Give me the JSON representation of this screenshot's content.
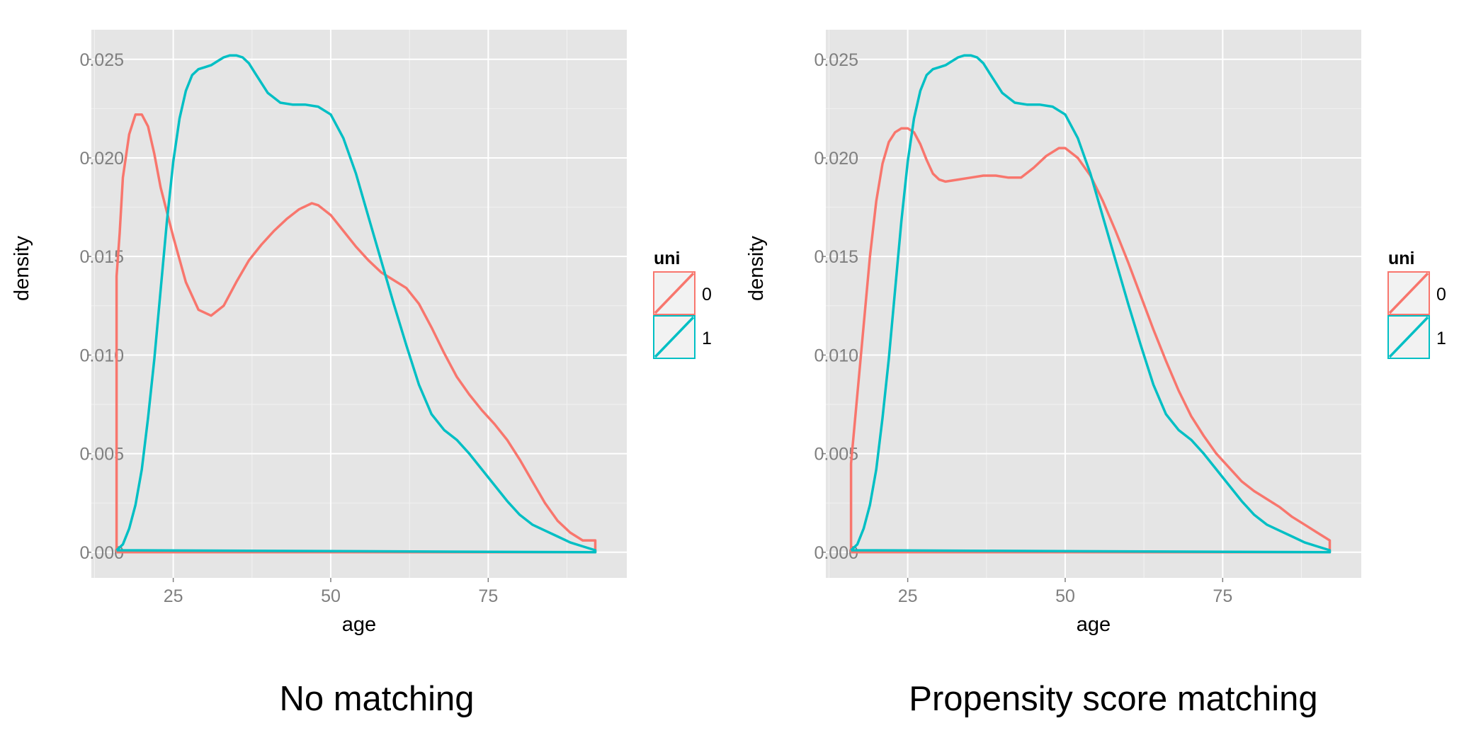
{
  "chart_data": [
    {
      "type": "line",
      "caption": "No matching",
      "xlabel": "age",
      "ylabel": "density",
      "xlim": [
        12,
        97
      ],
      "ylim": [
        -0.0013,
        0.0265
      ],
      "x_ticks": [
        25,
        50,
        75
      ],
      "x_tick_labels": [
        "25",
        "50",
        "75"
      ],
      "y_ticks": [
        0,
        0.005,
        0.01,
        0.015,
        0.02,
        0.025
      ],
      "y_tick_labels": [
        "0.000",
        "0.005",
        "0.010",
        "0.015",
        "0.020",
        "0.025"
      ],
      "grid": true,
      "legend": {
        "title": "uni",
        "position": "right"
      },
      "series": [
        {
          "name": "0",
          "color": "#F8766D",
          "x": [
            16,
            16,
            16.5,
            17,
            18,
            19,
            20,
            21,
            22,
            23,
            25,
            27,
            29,
            31,
            33,
            35,
            37,
            39,
            41,
            43,
            45,
            47,
            48,
            50,
            52,
            54,
            56,
            58,
            60,
            62,
            64,
            66,
            68,
            70,
            72,
            74,
            76,
            78,
            80,
            82,
            84,
            86,
            88,
            90,
            92,
            92
          ],
          "y": [
            0,
            0.014,
            0.0162,
            0.019,
            0.0212,
            0.0222,
            0.0222,
            0.0216,
            0.0202,
            0.0185,
            0.016,
            0.0137,
            0.0123,
            0.012,
            0.0125,
            0.0137,
            0.0148,
            0.0156,
            0.0163,
            0.0169,
            0.0174,
            0.0177,
            0.0176,
            0.0171,
            0.0163,
            0.0155,
            0.0148,
            0.0142,
            0.0138,
            0.0134,
            0.0126,
            0.0114,
            0.0101,
            0.0089,
            0.008,
            0.0072,
            0.0065,
            0.0057,
            0.0047,
            0.0036,
            0.0025,
            0.0016,
            0.001,
            0.0006,
            0.0006,
            0
          ]
        },
        {
          "name": "1",
          "color": "#00BFC4",
          "x": [
            16,
            17,
            18,
            19,
            20,
            21,
            22,
            23,
            24,
            25,
            26,
            27,
            28,
            29,
            30,
            31,
            32,
            33,
            34,
            35,
            36,
            37,
            38,
            40,
            42,
            44,
            46,
            48,
            50,
            52,
            54,
            56,
            58,
            60,
            62,
            64,
            66,
            68,
            70,
            72,
            74,
            76,
            78,
            80,
            82,
            84,
            86,
            88,
            90,
            92,
            92
          ],
          "y": [
            0.0001,
            0.0004,
            0.0012,
            0.0024,
            0.0042,
            0.0068,
            0.0098,
            0.0133,
            0.0168,
            0.0198,
            0.022,
            0.0234,
            0.0242,
            0.0245,
            0.0246,
            0.0247,
            0.0249,
            0.0251,
            0.0252,
            0.0252,
            0.0251,
            0.0248,
            0.0243,
            0.0233,
            0.0228,
            0.0227,
            0.0227,
            0.0226,
            0.0222,
            0.021,
            0.0192,
            0.017,
            0.0148,
            0.0126,
            0.0105,
            0.0085,
            0.007,
            0.0062,
            0.0057,
            0.005,
            0.0042,
            0.0034,
            0.0026,
            0.0019,
            0.0014,
            0.0011,
            0.0008,
            0.0005,
            0.0003,
            0.0001,
            0
          ]
        }
      ]
    },
    {
      "type": "line",
      "caption": "Propensity score matching",
      "xlabel": "age",
      "ylabel": "density",
      "xlim": [
        12,
        97
      ],
      "ylim": [
        -0.0013,
        0.0265
      ],
      "x_ticks": [
        25,
        50,
        75
      ],
      "x_tick_labels": [
        "25",
        "50",
        "75"
      ],
      "y_ticks": [
        0,
        0.005,
        0.01,
        0.015,
        0.02,
        0.025
      ],
      "y_tick_labels": [
        "0.000",
        "0.005",
        "0.010",
        "0.015",
        "0.020",
        "0.025"
      ],
      "grid": true,
      "legend": {
        "title": "uni",
        "position": "right"
      },
      "series": [
        {
          "name": "0",
          "color": "#F8766D",
          "x": [
            16,
            16,
            17,
            18,
            19,
            20,
            21,
            22,
            23,
            24,
            25,
            26,
            27,
            28,
            29,
            30,
            31,
            33,
            35,
            37,
            39,
            41,
            43,
            45,
            47,
            49,
            50,
            52,
            54,
            56,
            58,
            60,
            62,
            64,
            66,
            68,
            70,
            72,
            74,
            76,
            78,
            80,
            82,
            84,
            86,
            88,
            90,
            92,
            92
          ],
          "y": [
            0,
            0.0045,
            0.008,
            0.0115,
            0.015,
            0.0178,
            0.0197,
            0.0208,
            0.0213,
            0.0215,
            0.0215,
            0.0213,
            0.0207,
            0.0199,
            0.0192,
            0.0189,
            0.0188,
            0.0189,
            0.019,
            0.0191,
            0.0191,
            0.019,
            0.019,
            0.0195,
            0.0201,
            0.0205,
            0.0205,
            0.02,
            0.0191,
            0.0178,
            0.0163,
            0.0147,
            0.013,
            0.0113,
            0.0097,
            0.0082,
            0.0069,
            0.0059,
            0.005,
            0.0043,
            0.0036,
            0.0031,
            0.0027,
            0.0023,
            0.0018,
            0.0014,
            0.001,
            0.0006,
            0
          ]
        },
        {
          "name": "1",
          "color": "#00BFC4",
          "x": [
            16,
            17,
            18,
            19,
            20,
            21,
            22,
            23,
            24,
            25,
            26,
            27,
            28,
            29,
            30,
            31,
            32,
            33,
            34,
            35,
            36,
            37,
            38,
            40,
            42,
            44,
            46,
            48,
            50,
            52,
            54,
            56,
            58,
            60,
            62,
            64,
            66,
            68,
            70,
            72,
            74,
            76,
            78,
            80,
            82,
            84,
            86,
            88,
            90,
            92,
            92
          ],
          "y": [
            0.0001,
            0.0004,
            0.0012,
            0.0024,
            0.0042,
            0.0068,
            0.0098,
            0.0133,
            0.0168,
            0.0198,
            0.022,
            0.0234,
            0.0242,
            0.0245,
            0.0246,
            0.0247,
            0.0249,
            0.0251,
            0.0252,
            0.0252,
            0.0251,
            0.0248,
            0.0243,
            0.0233,
            0.0228,
            0.0227,
            0.0227,
            0.0226,
            0.0222,
            0.021,
            0.0192,
            0.017,
            0.0148,
            0.0126,
            0.0105,
            0.0085,
            0.007,
            0.0062,
            0.0057,
            0.005,
            0.0042,
            0.0034,
            0.0026,
            0.0019,
            0.0014,
            0.0011,
            0.0008,
            0.0005,
            0.0003,
            0.0001,
            0
          ]
        }
      ]
    }
  ]
}
